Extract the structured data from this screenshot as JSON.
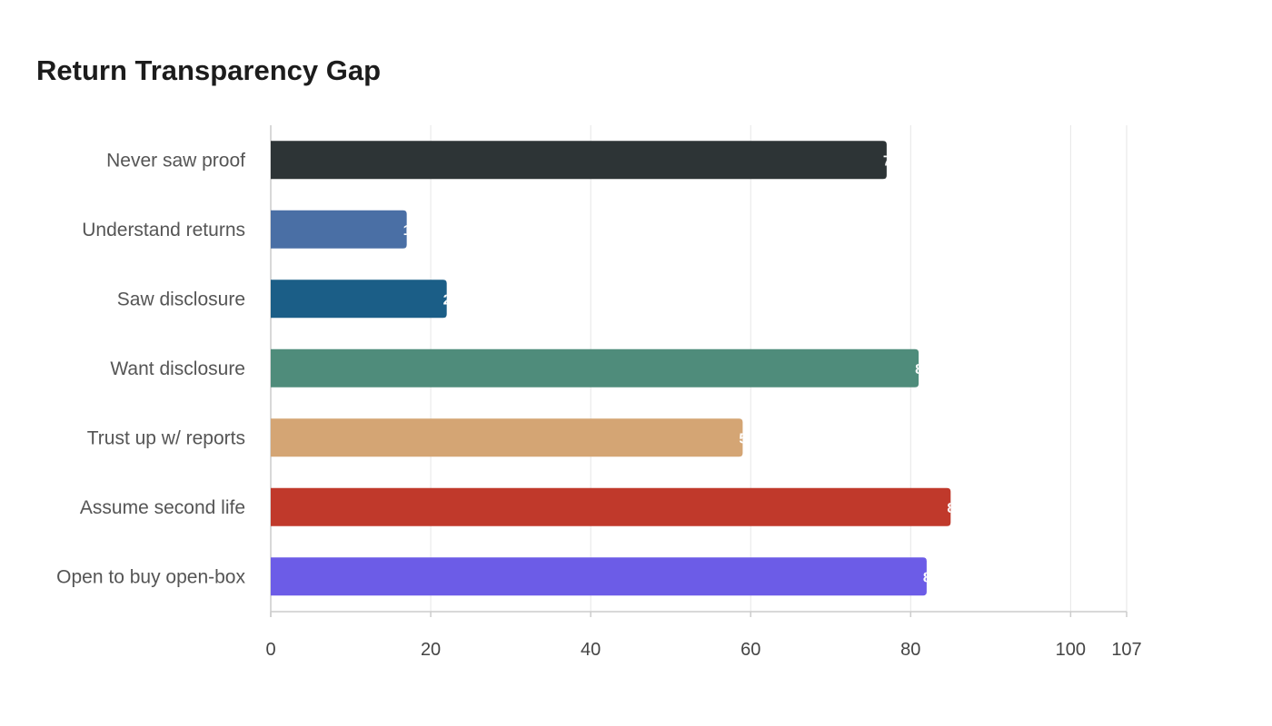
{
  "chart_data": {
    "type": "bar",
    "orientation": "horizontal",
    "title": "Return Transparency Gap",
    "xlabel": "",
    "ylabel": "",
    "xlim": [
      0,
      107
    ],
    "x_ticks": [
      "0",
      "20",
      "40",
      "60",
      "80",
      "100",
      "107"
    ],
    "grid": true,
    "categories": [
      "Never saw proof",
      "Understand returns",
      "Saw disclosure",
      "Want disclosure",
      "Trust up w/ reports",
      "Assume second life",
      "Open to buy open-box"
    ],
    "values": [
      77,
      17,
      22,
      81,
      59,
      85,
      82
    ],
    "colors": [
      "#2d3436",
      "#4a6fa5",
      "#1b5e87",
      "#4f8c7b",
      "#d4a574",
      "#c0392b",
      "#6c5ce7"
    ]
  }
}
